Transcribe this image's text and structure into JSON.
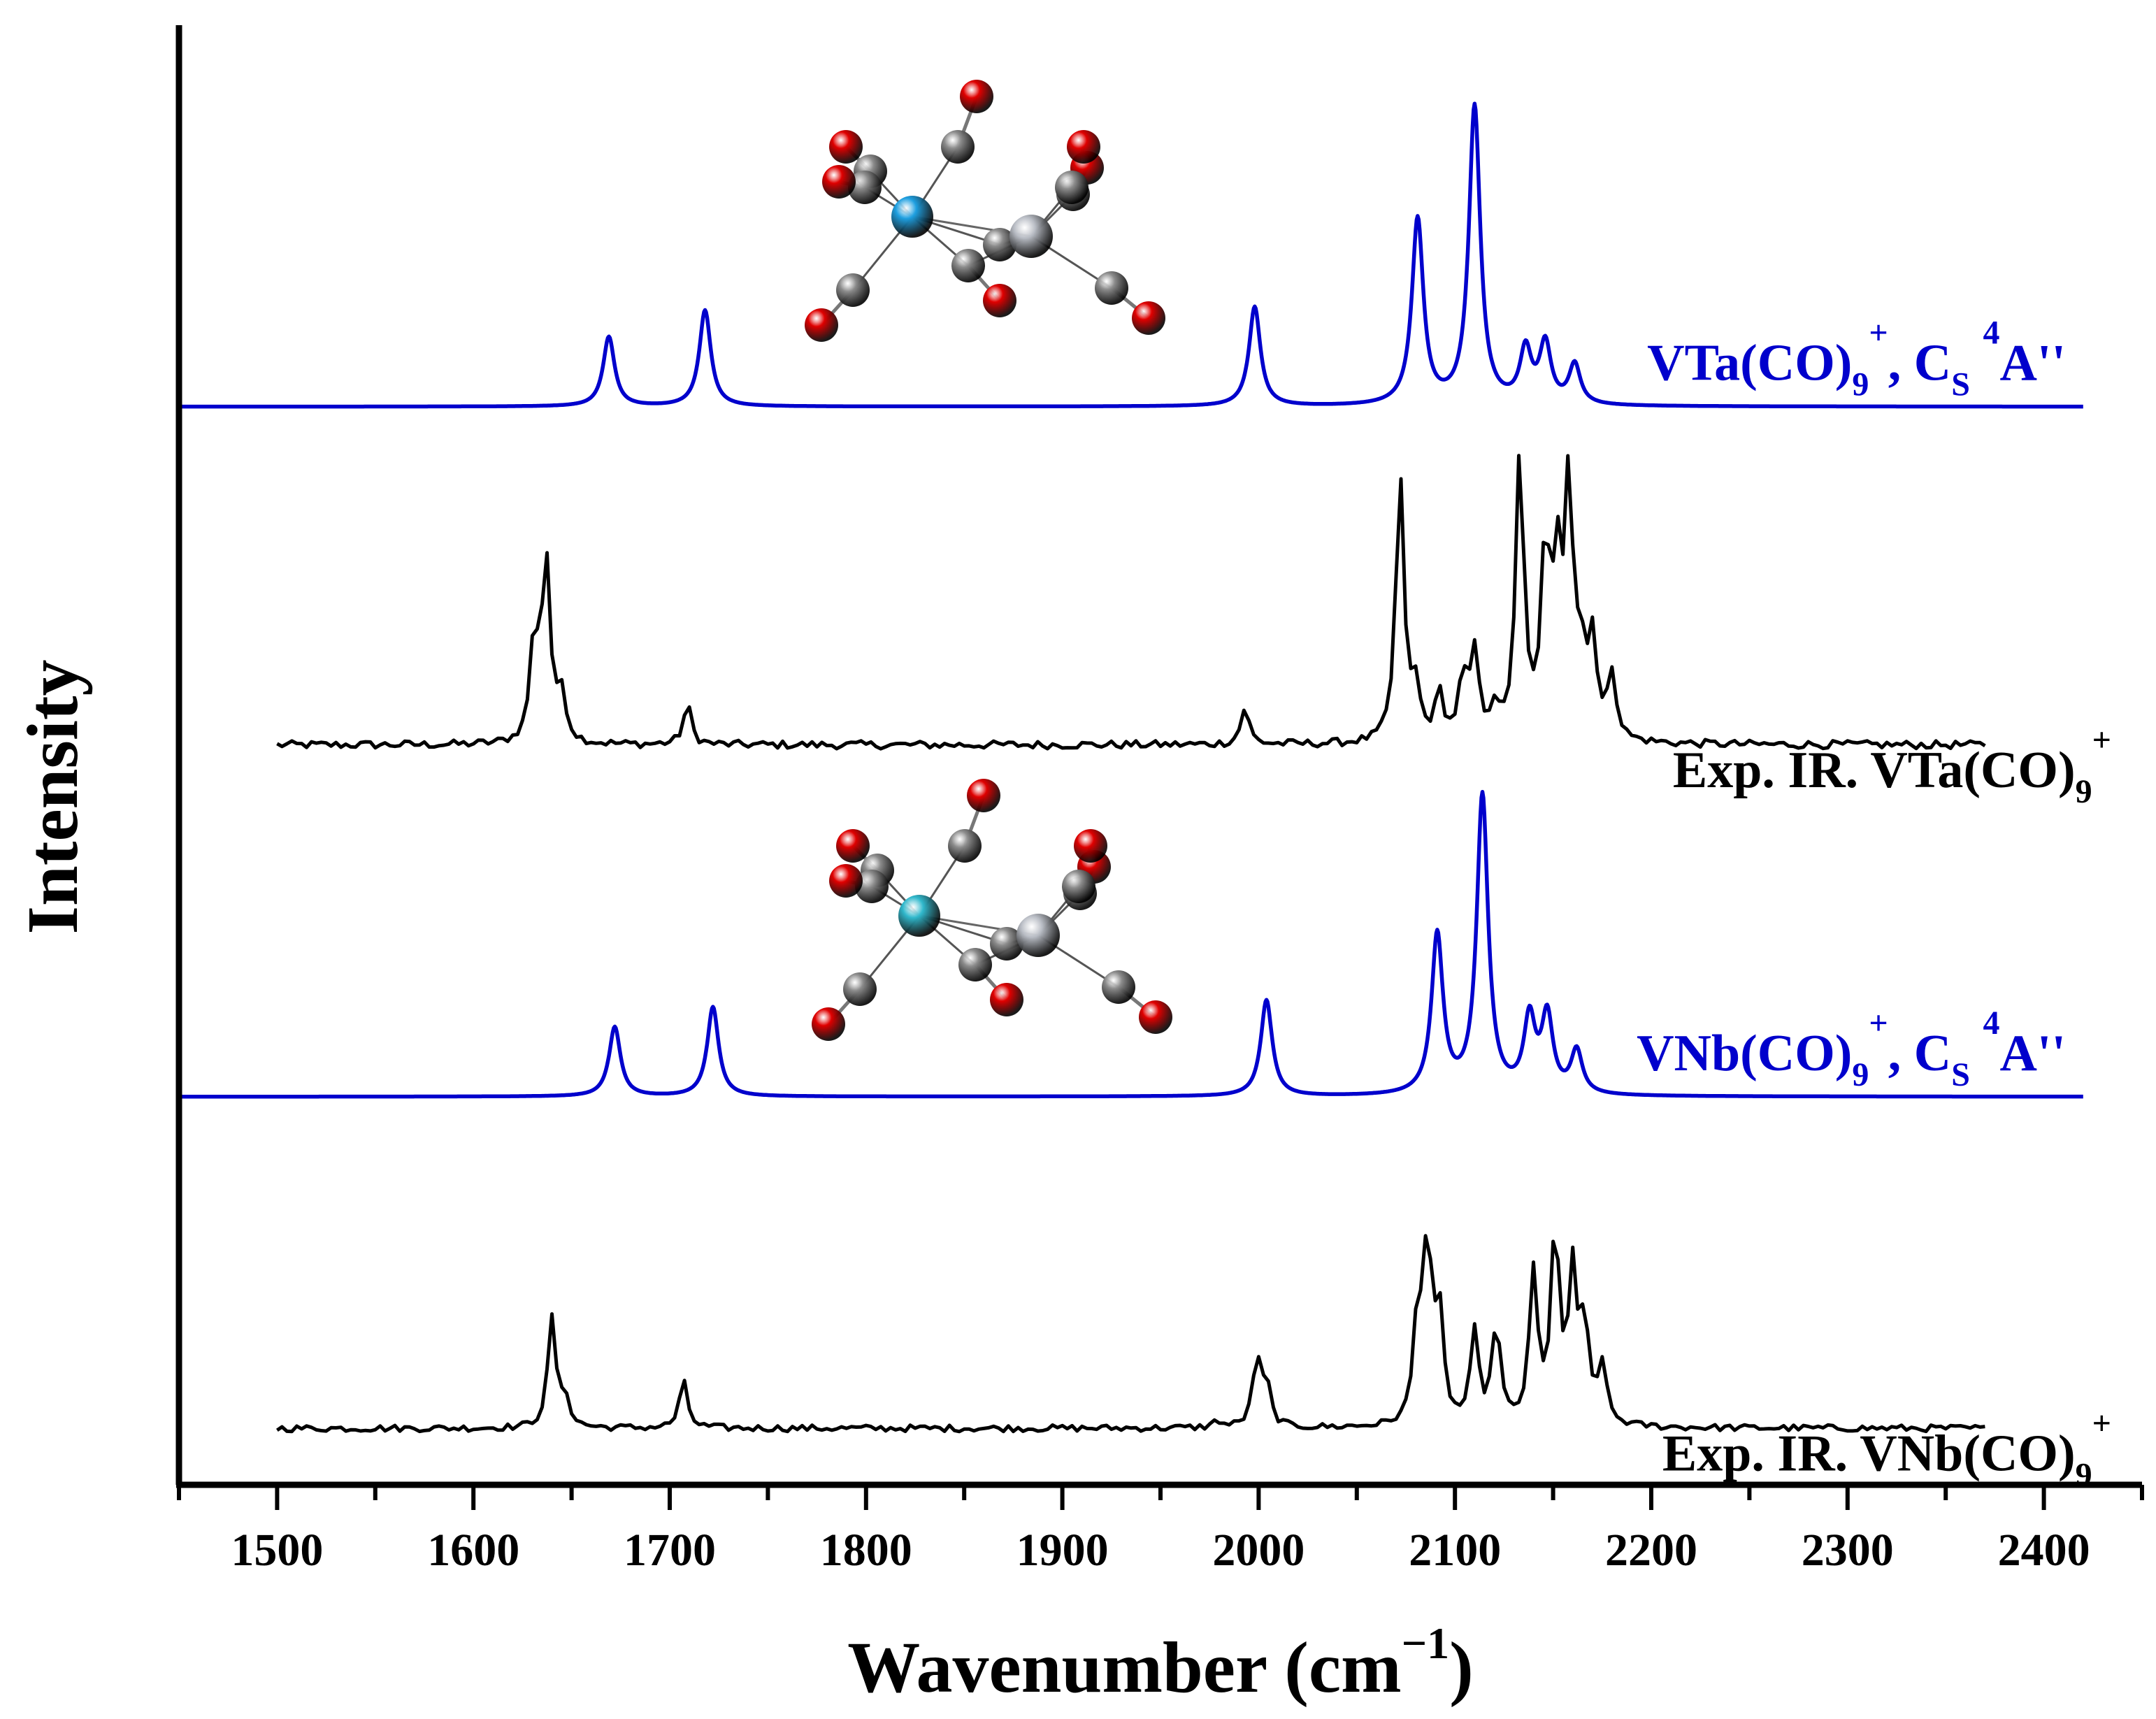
{
  "chart_data": {
    "type": "line",
    "title": "",
    "xlabel_main": "Wavenumber (cm",
    "xlabel_sup": "−1",
    "xlabel_close": ")",
    "ylabel": "Intensity",
    "xlim": [
      1450,
      2450
    ],
    "xticks": [
      1500,
      1600,
      1700,
      1800,
      1900,
      2000,
      2100,
      2200,
      2300,
      2400
    ],
    "ylim": [
      0,
      4.4
    ],
    "grid": false,
    "colors": {
      "calc": "#0000cc",
      "exp": "#000000",
      "axis": "#000000"
    },
    "series": [
      {
        "name": "VTa(CO)9+, Cs 4A'' (calc)",
        "kind": "calc",
        "baseline": 3.25,
        "x_range": [
          1450,
          2420
        ],
        "width": 3.5,
        "peaks": [
          [
            1669,
            0.21
          ],
          [
            1718,
            0.29
          ],
          [
            1998,
            0.3
          ],
          [
            2081,
            0.56
          ],
          [
            2110,
            0.9
          ],
          [
            2136,
            0.16
          ],
          [
            2146,
            0.18
          ],
          [
            2161,
            0.12
          ]
        ],
        "label_parts": [
          {
            "t": "VTa(CO)"
          },
          {
            "t": "9",
            "sub": true
          },
          {
            "t": "+",
            "sup": true
          },
          {
            "t": ", C"
          },
          {
            "t": "S",
            "sub": true
          },
          {
            "t": " "
          },
          {
            "t": "4",
            "sup": true
          },
          {
            "t": "A''"
          }
        ]
      },
      {
        "name": "Exp. IR. VTa(CO)9+",
        "kind": "exp",
        "baseline": 2.23,
        "x_range": [
          1500,
          2370
        ],
        "width": 2.5,
        "noise": 0.012,
        "peaks": [
          [
            1631,
            0.3
          ],
          [
            1637,
            0.55
          ],
          [
            1645,
            0.14
          ],
          [
            1709,
            0.12
          ],
          [
            1993,
            0.11
          ],
          [
            2072,
            0.8
          ],
          [
            2080,
            0.15
          ],
          [
            2092,
            0.14
          ],
          [
            2104,
            0.18
          ],
          [
            2110,
            0.26
          ],
          [
            2120,
            0.09
          ],
          [
            2133,
            0.85
          ],
          [
            2146,
            0.55
          ],
          [
            2152,
            0.48
          ],
          [
            2158,
            0.75
          ],
          [
            2164,
            0.22
          ],
          [
            2170,
            0.3
          ],
          [
            2180,
            0.2
          ]
        ],
        "label_parts": [
          {
            "t": "Exp. IR. VTa(CO)"
          },
          {
            "t": "9",
            "sub": true
          },
          {
            "t": "+",
            "sup": true
          }
        ]
      },
      {
        "name": "VNb(CO)9+, Cs 4A'' (calc)",
        "kind": "calc",
        "baseline": 1.17,
        "x_range": [
          1450,
          2420
        ],
        "width": 3.5,
        "peaks": [
          [
            1672,
            0.21
          ],
          [
            1722,
            0.27
          ],
          [
            2004,
            0.29
          ],
          [
            2091,
            0.48
          ],
          [
            2114,
            0.9
          ],
          [
            2138,
            0.22
          ],
          [
            2147,
            0.23
          ],
          [
            2162,
            0.13
          ]
        ],
        "label_parts": [
          {
            "t": "VNb(CO)"
          },
          {
            "t": "9",
            "sub": true
          },
          {
            "t": "+",
            "sup": true
          },
          {
            "t": ", C"
          },
          {
            "t": "S",
            "sub": true
          },
          {
            "t": " "
          },
          {
            "t": "4",
            "sup": true
          },
          {
            "t": "A''"
          }
        ]
      },
      {
        "name": "Exp. IR. VNb(CO)9+",
        "kind": "exp",
        "baseline": 0.17,
        "x_range": [
          1500,
          2370
        ],
        "width": 2.5,
        "noise": 0.01,
        "peaks": [
          [
            1640,
            0.33
          ],
          [
            1647,
            0.08
          ],
          [
            1707,
            0.14
          ],
          [
            1979,
            0.02
          ],
          [
            1999,
            0.2
          ],
          [
            2004,
            0.12
          ],
          [
            2081,
            0.3
          ],
          [
            2086,
            0.53
          ],
          [
            2092,
            0.32
          ],
          [
            2110,
            0.27
          ],
          [
            2121,
            0.3
          ],
          [
            2140,
            0.45
          ],
          [
            2151,
            0.58
          ],
          [
            2160,
            0.45
          ],
          [
            2166,
            0.28
          ],
          [
            2175,
            0.18
          ]
        ],
        "label_parts": [
          {
            "t": "Exp. IR. VNb(CO)"
          },
          {
            "t": "9",
            "sub": true
          },
          {
            "t": "+",
            "sup": true
          }
        ]
      }
    ],
    "molecule_colors": {
      "oxygen": "#e00000",
      "carbon": "#8c8c8c",
      "metal_ta": "#1e9fe0",
      "metal_nb": "#30b8cc",
      "metal_v": "#b8bcc4"
    }
  }
}
